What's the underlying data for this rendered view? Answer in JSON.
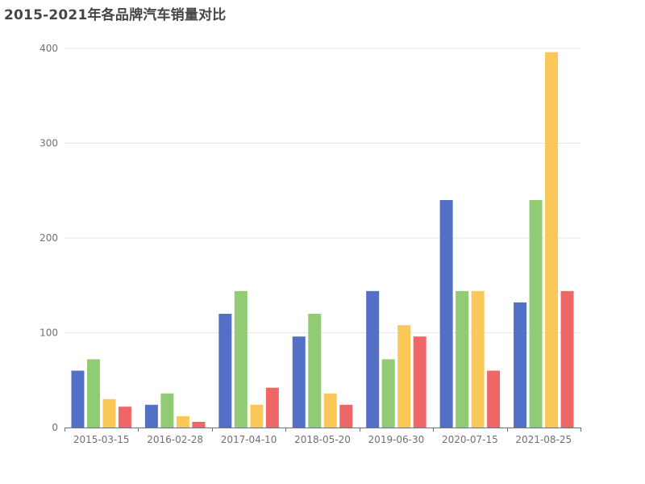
{
  "chart_data": {
    "type": "bar",
    "title": "2015-2021年各品牌汽车销量对比",
    "xlabel": "",
    "ylabel": "",
    "categories": [
      "2015-03-15",
      "2016-02-28",
      "2017-04-10",
      "2018-05-20",
      "2019-06-30",
      "2020-07-15",
      "2021-08-25"
    ],
    "series": [
      {
        "values": [
          60,
          24,
          120,
          96,
          144,
          240,
          132
        ],
        "color": "#5470c6"
      },
      {
        "values": [
          72,
          36,
          144,
          120,
          72,
          144,
          240
        ],
        "color": "#91cc75"
      },
      {
        "values": [
          30,
          12,
          24,
          36,
          108,
          144,
          396
        ],
        "color": "#fac858"
      },
      {
        "values": [
          22,
          6,
          42,
          24,
          96,
          60,
          144
        ],
        "color": "#ee6666"
      }
    ],
    "ylim": [
      0,
      400
    ],
    "yticks": [
      0,
      100,
      200,
      300,
      400
    ],
    "grid": true
  }
}
